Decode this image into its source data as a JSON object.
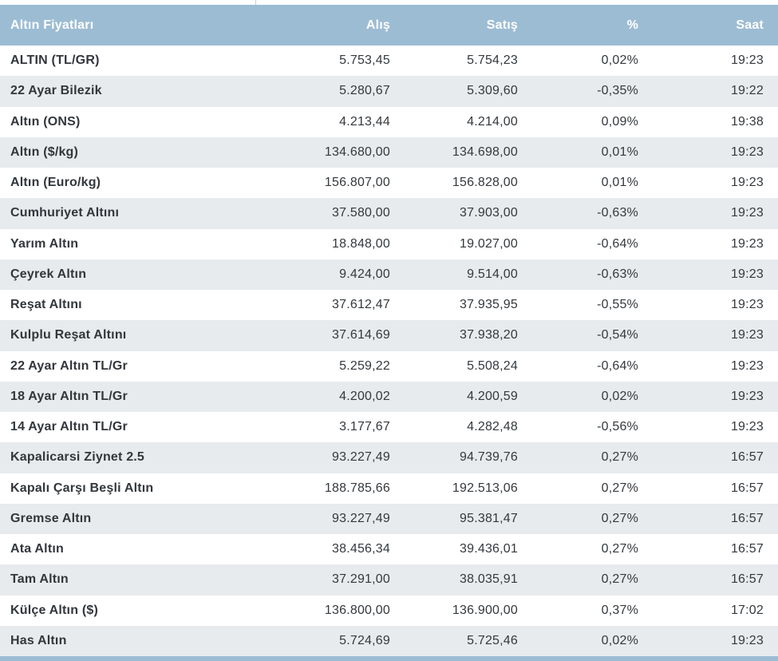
{
  "page": {
    "accent_color": "#9cbcd3",
    "alt_row_color": "#e7ebee",
    "text_color": "#34393e"
  },
  "table": {
    "columns": [
      "Altın Fiyatları",
      "Alış",
      "Satış",
      "%",
      "Saat"
    ],
    "rows": [
      {
        "name": "ALTIN (TL/GR)",
        "buy": "5.753,45",
        "sell": "5.754,23",
        "change": "0,02%",
        "time": "19:23"
      },
      {
        "name": "22 Ayar Bilezik",
        "buy": "5.280,67",
        "sell": "5.309,60",
        "change": "-0,35%",
        "time": "19:22"
      },
      {
        "name": "Altın (ONS)",
        "buy": "4.213,44",
        "sell": "4.214,00",
        "change": "0,09%",
        "time": "19:38"
      },
      {
        "name": "Altın ($/kg)",
        "buy": "134.680,00",
        "sell": "134.698,00",
        "change": "0,01%",
        "time": "19:23"
      },
      {
        "name": "Altın (Euro/kg)",
        "buy": "156.807,00",
        "sell": "156.828,00",
        "change": "0,01%",
        "time": "19:23"
      },
      {
        "name": "Cumhuriyet Altını",
        "buy": "37.580,00",
        "sell": "37.903,00",
        "change": "-0,63%",
        "time": "19:23"
      },
      {
        "name": "Yarım Altın",
        "buy": "18.848,00",
        "sell": "19.027,00",
        "change": "-0,64%",
        "time": "19:23"
      },
      {
        "name": "Çeyrek Altın",
        "buy": "9.424,00",
        "sell": "9.514,00",
        "change": "-0,63%",
        "time": "19:23"
      },
      {
        "name": "Reşat Altını",
        "buy": "37.612,47",
        "sell": "37.935,95",
        "change": "-0,55%",
        "time": "19:23"
      },
      {
        "name": "Kulplu Reşat Altını",
        "buy": "37.614,69",
        "sell": "37.938,20",
        "change": "-0,54%",
        "time": "19:23"
      },
      {
        "name": "22 Ayar Altın TL/Gr",
        "buy": "5.259,22",
        "sell": "5.508,24",
        "change": "-0,64%",
        "time": "19:23"
      },
      {
        "name": "18 Ayar Altın TL/Gr",
        "buy": "4.200,02",
        "sell": "4.200,59",
        "change": "0,02%",
        "time": "19:23"
      },
      {
        "name": "14 Ayar Altın TL/Gr",
        "buy": "3.177,67",
        "sell": "4.282,48",
        "change": "-0,56%",
        "time": "19:23"
      },
      {
        "name": "Kapalicarsi Ziynet 2.5",
        "buy": "93.227,49",
        "sell": "94.739,76",
        "change": "0,27%",
        "time": "16:57"
      },
      {
        "name": "Kapalı Çarşı Beşli Altın",
        "buy": "188.785,66",
        "sell": "192.513,06",
        "change": "0,27%",
        "time": "16:57"
      },
      {
        "name": "Gremse Altın",
        "buy": "93.227,49",
        "sell": "95.381,47",
        "change": "0,27%",
        "time": "16:57"
      },
      {
        "name": "Ata Altın",
        "buy": "38.456,34",
        "sell": "39.436,01",
        "change": "0,27%",
        "time": "16:57"
      },
      {
        "name": "Tam Altın",
        "buy": "37.291,00",
        "sell": "38.035,91",
        "change": "0,27%",
        "time": "16:57"
      },
      {
        "name": "Külçe Altın ($)",
        "buy": "136.800,00",
        "sell": "136.900,00",
        "change": "0,37%",
        "time": "17:02"
      },
      {
        "name": "Has Altın",
        "buy": "5.724,69",
        "sell": "5.725,46",
        "change": "0,02%",
        "time": "19:23"
      }
    ]
  }
}
